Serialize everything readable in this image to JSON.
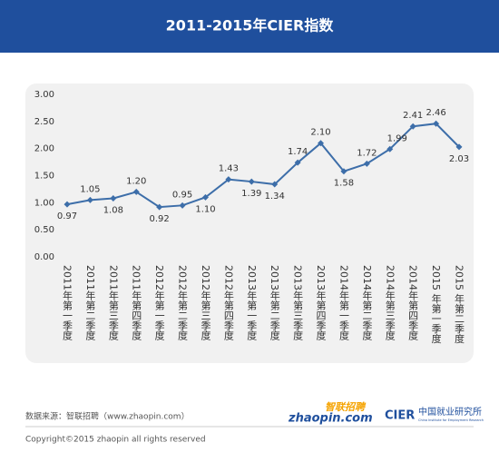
{
  "chart_data": {
    "type": "line",
    "title": "2011-2015年CIER指数",
    "categories": [
      "2011年第一季度",
      "2011年第二季度",
      "2011年第三季度",
      "2011年第四季度",
      "2012年第一季度",
      "2012年第二季度",
      "2012年第三季度",
      "2012年第四季度",
      "2013年第一季度",
      "2013年第二季度",
      "2013年第三季度",
      "2013年第四季度",
      "2014年第一季度",
      "2014年第二季度",
      "2014年第三季度",
      "2014年第四季度",
      "2015 年第一季度",
      "2015 年第二季度"
    ],
    "series": [
      {
        "name": "CIER指数",
        "color": "#3d6ea9",
        "values": [
          0.97,
          1.05,
          1.08,
          1.2,
          0.92,
          0.95,
          1.1,
          1.43,
          1.39,
          1.34,
          1.74,
          2.1,
          1.58,
          1.72,
          1.99,
          2.41,
          2.46,
          2.03
        ],
        "value_labels": [
          "0.97",
          "1.05",
          "1.08",
          "1.20",
          "0.92",
          "0.95",
          "1.10",
          "1.43",
          "1.39",
          "1.34",
          "1.74",
          "2.10",
          "1.58",
          "1.72",
          "1.99",
          "2.41",
          "2.46",
          "2.03"
        ]
      }
    ],
    "ylim": [
      0,
      3
    ],
    "yticks": [
      {
        "value": 0,
        "label": "0.00"
      },
      {
        "value": 0.5,
        "label": "0.50"
      },
      {
        "value": 1,
        "label": "1.00"
      },
      {
        "value": 1.5,
        "label": "1.50"
      },
      {
        "value": 2,
        "label": "2.00"
      },
      {
        "value": 2.5,
        "label": "2.50"
      },
      {
        "value": 3,
        "label": "3.00"
      }
    ],
    "grid": false
  },
  "footer": {
    "source": "数据来源：智联招聘（www.zhaopin.com）",
    "copyright": "Copyright©2015 zhaopin all rights reserved",
    "logo1_cn": "智联招聘",
    "logo1_en": "zhaopin.com",
    "logo2_abbr": "CIER",
    "logo2_cn": "中国就业研究所",
    "logo2_en": "China Institute for Employment Research"
  }
}
